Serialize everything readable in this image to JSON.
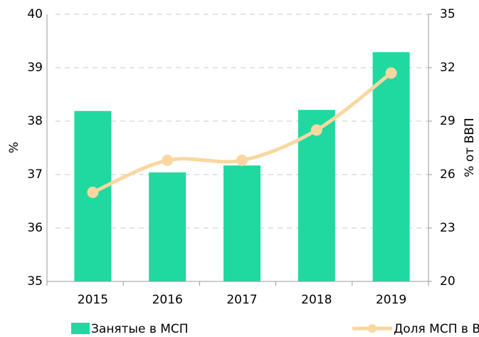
{
  "chart_data": {
    "type": "bar_line",
    "categories": [
      "2015",
      "2016",
      "2017",
      "2018",
      "2019"
    ],
    "series": [
      {
        "name": "Занятые в МСП",
        "color": "#1fd9a1",
        "type": "bar",
        "values": [
          38.19,
          37.04,
          37.17,
          38.21,
          39.29
        ]
      },
      {
        "name": "Доля МСП в ВВП (п.ш.)",
        "color": "#fad7a0",
        "type": "line",
        "axis": "y2",
        "values": [
          25.0,
          26.8,
          26.8,
          28.5,
          31.7
        ]
      }
    ],
    "ylabel": "%",
    "y2label": "% от ВВП",
    "ylim": [
      35,
      40
    ],
    "yticks": [
      35,
      36,
      37,
      38,
      39,
      40
    ],
    "y2lim": [
      20,
      35
    ],
    "y2ticks": [
      20,
      23,
      26,
      29,
      32,
      35
    ],
    "grid": true,
    "legend": "bottom"
  }
}
